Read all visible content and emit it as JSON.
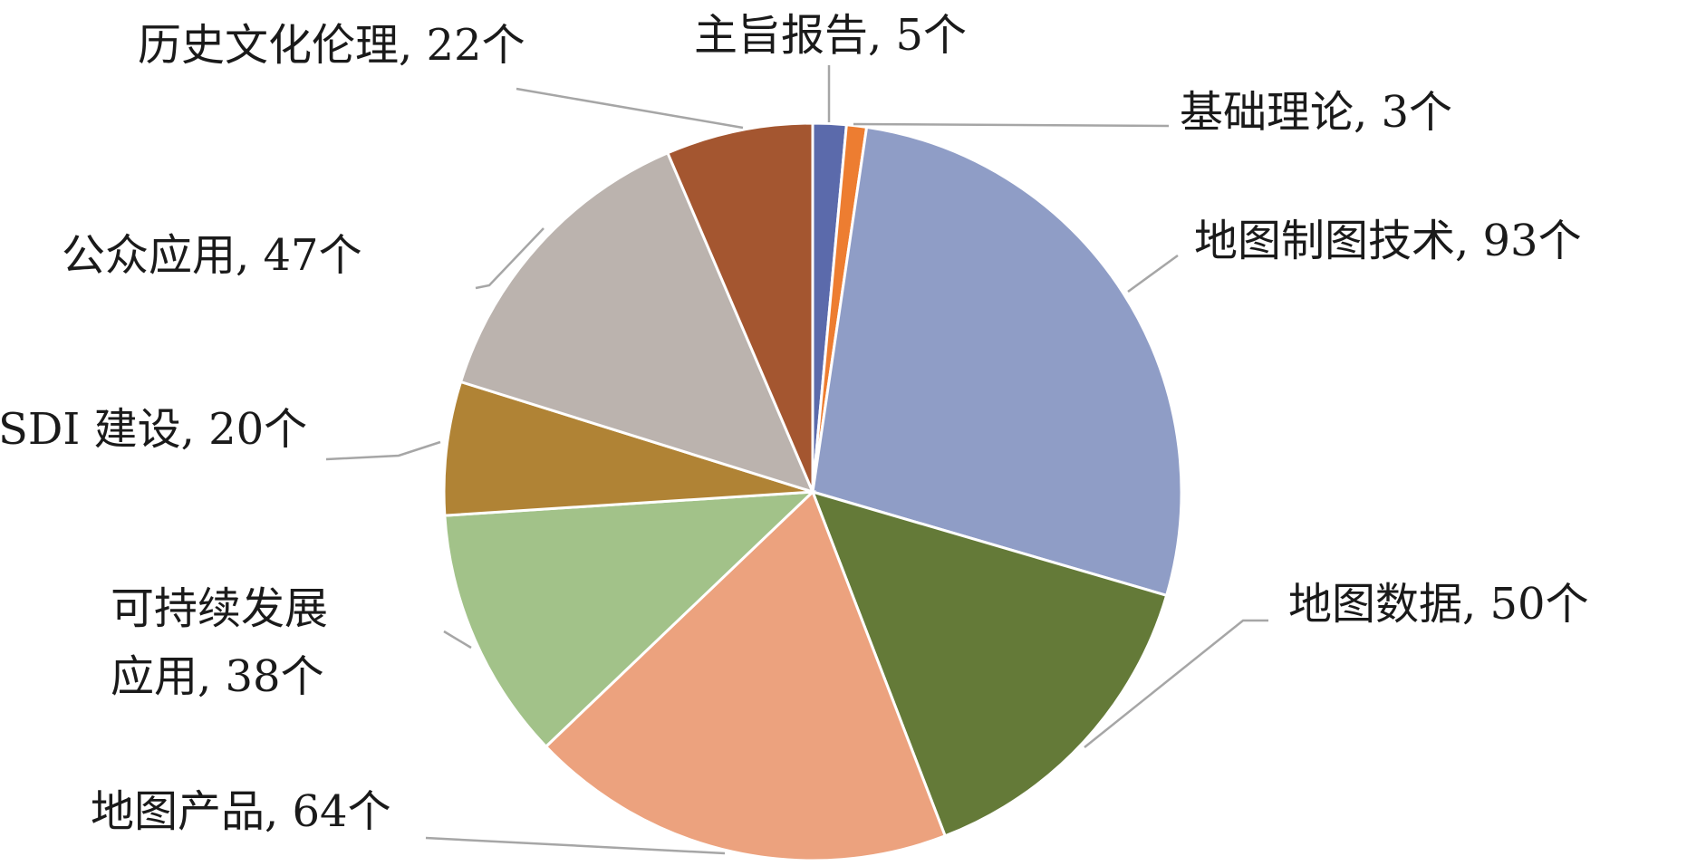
{
  "chart_data": {
    "type": "pie",
    "title": "",
    "unit": "个",
    "start_angle_deg": 0,
    "direction": "clockwise",
    "legend": "none",
    "slices": [
      {
        "name": "主旨报告",
        "value": 5,
        "color": "#5b6aab",
        "label": [
          "主旨报告, 5个"
        ]
      },
      {
        "name": "基础理论",
        "value": 3,
        "color": "#ed7d31",
        "label": [
          "基础理论, 3个"
        ]
      },
      {
        "name": "地图制图技术",
        "value": 93,
        "color": "#8f9dc6",
        "label": [
          "地图制图技术, 93个"
        ]
      },
      {
        "name": "地图数据",
        "value": 50,
        "color": "#647a38",
        "label": [
          "地图数据, 50个"
        ]
      },
      {
        "name": "地图产品",
        "value": 64,
        "color": "#eca27e",
        "label": [
          "地图产品, 64个"
        ]
      },
      {
        "name": "可持续发展应用",
        "value": 38,
        "color": "#a2c289",
        "label": [
          "可持续发展",
          "应用, 38个"
        ]
      },
      {
        "name": "SDI 建设",
        "value": 20,
        "color": "#b08335",
        "label": [
          "SDI 建设, 20个"
        ]
      },
      {
        "name": "公众应用",
        "value": 47,
        "color": "#bbb3ae",
        "label": [
          "公众应用, 47个"
        ]
      },
      {
        "name": "历史文化伦理",
        "value": 22,
        "color": "#a45630",
        "label": [
          "历史文化伦理, 22个"
        ]
      }
    ]
  }
}
